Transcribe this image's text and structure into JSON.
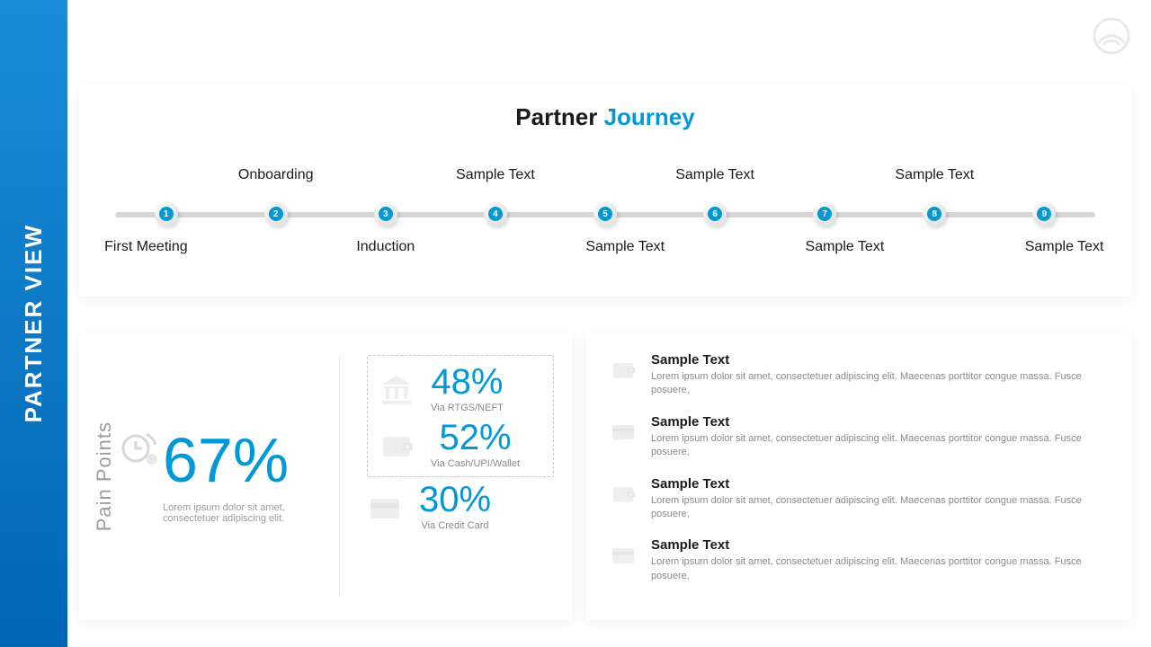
{
  "sidebar": {
    "title": "PARTNER  VIEW"
  },
  "journey": {
    "title_left": "Partner",
    "title_right": "Journey",
    "accent_color": "#0099d6",
    "line_color": "#d6d6d6",
    "nodes": [
      {
        "num": "1",
        "pos_pct": 6,
        "label": "First Meeting",
        "label_side": "bottom",
        "label_align_pct": 4
      },
      {
        "num": "2",
        "pos_pct": 17,
        "label": "Onboarding",
        "label_side": "top",
        "label_align_pct": 17
      },
      {
        "num": "3",
        "pos_pct": 28,
        "label": "Induction",
        "label_side": "bottom",
        "label_align_pct": 28
      },
      {
        "num": "4",
        "pos_pct": 39,
        "label": "Sample Text",
        "label_side": "top",
        "label_align_pct": 39
      },
      {
        "num": "5",
        "pos_pct": 50,
        "label": "Sample Text",
        "label_side": "bottom",
        "label_align_pct": 52
      },
      {
        "num": "6",
        "pos_pct": 61,
        "label": "Sample Text",
        "label_side": "top",
        "label_align_pct": 61
      },
      {
        "num": "7",
        "pos_pct": 72,
        "label": "Sample Text",
        "label_side": "bottom",
        "label_align_pct": 74
      },
      {
        "num": "8",
        "pos_pct": 83,
        "label": "Sample Text",
        "label_side": "top",
        "label_align_pct": 83
      },
      {
        "num": "9",
        "pos_pct": 94,
        "label": "Sample Text",
        "label_side": "bottom",
        "label_align_pct": 96
      }
    ]
  },
  "pain": {
    "rot_label": "Pain Points",
    "big_value": "67%",
    "big_desc": "Lorem ipsum dolor sit amet, consectetuer adipiscing elit.",
    "stats": [
      {
        "icon": "bank",
        "value": "48%",
        "label": "Via RTGS/NEFT",
        "dashed": true
      },
      {
        "icon": "wallet",
        "value": "52%",
        "label": "Via Cash/UPI/Wallet",
        "dashed": true
      },
      {
        "icon": "card",
        "value": "30%",
        "label": "Via Credit Card",
        "dashed": false
      }
    ]
  },
  "samples": [
    {
      "icon": "wallet",
      "title": "Sample Text",
      "desc": "Lorem ipsum dolor sit amet, consectetuer adipiscing elit. Maecenas porttitor congue massa. Fusce posuere,"
    },
    {
      "icon": "card",
      "title": "Sample Text",
      "desc": "Lorem ipsum dolor sit amet, consectetuer adipiscing elit. Maecenas porttitor congue massa. Fusce posuere,"
    },
    {
      "icon": "wallet",
      "title": "Sample Text",
      "desc": "Lorem ipsum dolor sit amet, consectetuer adipiscing elit. Maecenas porttitor congue massa. Fusce posuere,"
    },
    {
      "icon": "card",
      "title": "Sample Text",
      "desc": "Lorem ipsum dolor sit amet, consectetuer adipiscing elit. Maecenas porttitor congue massa. Fusce posuere,"
    }
  ],
  "icon_color": "#9c9c9c"
}
